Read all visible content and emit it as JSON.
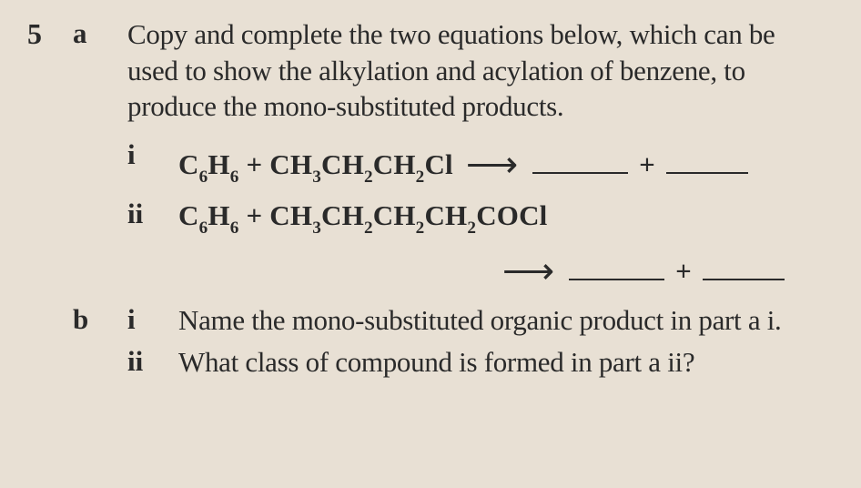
{
  "background_color": "#e8e0d4",
  "text_color": "#2a2a2a",
  "font_family": "Georgia, 'Times New Roman', serif",
  "base_fontsize_pt": 31,
  "question_number": "5",
  "part_a": {
    "label": "a",
    "text": "Copy and complete the two equations below, which can be used to show the alkylation and acylation of benzene, to produce the mono-substituted products.",
    "equations": [
      {
        "label": "i",
        "lhs_html": "C<span class='sub'>6</span>H<span class='sub'>6</span> + CH<span class='sub'>3</span>CH<span class='sub'>2</span>CH<span class='sub'>2</span>Cl",
        "arrow_same_line": true
      },
      {
        "label": "ii",
        "lhs_html": "C<span class='sub'>6</span>H<span class='sub'>6</span> + CH<span class='sub'>3</span>CH<span class='sub'>2</span>CH<span class='sub'>2</span>CH<span class='sub'>2</span>COCl",
        "arrow_same_line": false
      }
    ]
  },
  "part_b": {
    "label": "b",
    "items": [
      {
        "label": "i",
        "text": "Name the mono-substituted organic product in part a i."
      },
      {
        "label": "ii",
        "text": "What class of compound is formed in part a ii?"
      }
    ]
  }
}
